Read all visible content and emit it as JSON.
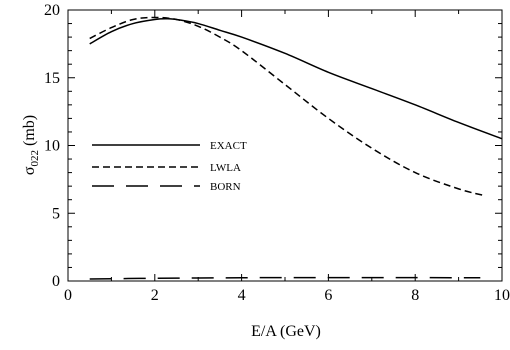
{
  "chart_data": {
    "type": "line",
    "title": "",
    "xlabel": "E/A  (GeV)",
    "ylabel_main": "σ",
    "ylabel_sub": "022",
    "ylabel_unit": " (mb)",
    "xlim": [
      0,
      10
    ],
    "ylim": [
      0,
      20
    ],
    "xticks": [
      0,
      2,
      4,
      6,
      8,
      10
    ],
    "yticks": [
      0,
      5,
      10,
      15,
      20
    ],
    "grid": false,
    "legend_position": "center-left",
    "series": [
      {
        "name": "EXACT",
        "style": "solid",
        "x": [
          0.5,
          1.0,
          1.5,
          2.0,
          2.3,
          2.6,
          3.0,
          3.5,
          4.0,
          5.0,
          6.0,
          7.0,
          8.0,
          9.0,
          10.0
        ],
        "y": [
          17.5,
          18.4,
          19.0,
          19.3,
          19.35,
          19.25,
          19.0,
          18.5,
          18.0,
          16.8,
          15.4,
          14.2,
          13.0,
          11.7,
          10.5
        ]
      },
      {
        "name": "LWLA",
        "style": "dashed",
        "x": [
          0.5,
          1.0,
          1.5,
          2.0,
          2.5,
          3.0,
          3.5,
          4.0,
          5.0,
          6.0,
          7.0,
          8.0,
          9.0,
          9.6
        ],
        "y": [
          17.9,
          18.7,
          19.3,
          19.45,
          19.3,
          18.8,
          18.0,
          17.0,
          14.5,
          12.0,
          9.8,
          8.0,
          6.8,
          6.3
        ]
      },
      {
        "name": "BORN",
        "style": "long-dashed",
        "x": [
          0.5,
          1.0,
          2.0,
          3.0,
          4.0,
          5.0,
          6.0,
          7.0,
          8.0,
          9.0,
          9.5
        ],
        "y": [
          0.15,
          0.17,
          0.2,
          0.22,
          0.24,
          0.25,
          0.25,
          0.25,
          0.25,
          0.24,
          0.24
        ]
      }
    ]
  }
}
